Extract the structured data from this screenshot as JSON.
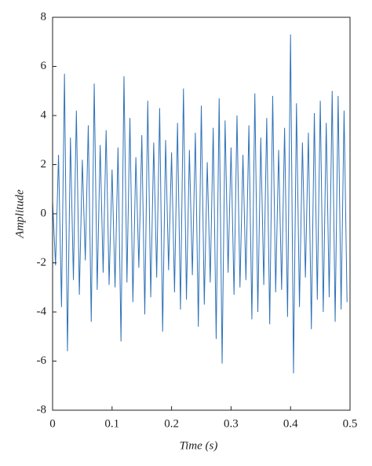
{
  "chart_data": {
    "type": "line",
    "xlabel": "Time (s)",
    "ylabel": "Amplitude",
    "x": [
      0,
      0.005,
      0.01,
      0.015,
      0.02,
      0.025,
      0.03,
      0.035,
      0.04,
      0.045,
      0.05,
      0.055,
      0.06,
      0.065,
      0.07,
      0.075,
      0.08,
      0.085,
      0.09,
      0.095,
      0.1,
      0.105,
      0.11,
      0.115,
      0.12,
      0.125,
      0.13,
      0.135,
      0.14,
      0.145,
      0.15,
      0.155,
      0.16,
      0.165,
      0.17,
      0.175,
      0.18,
      0.185,
      0.19,
      0.195,
      0.2,
      0.205,
      0.21,
      0.215,
      0.22,
      0.225,
      0.23,
      0.235,
      0.24,
      0.245,
      0.25,
      0.255,
      0.26,
      0.265,
      0.27,
      0.275,
      0.28,
      0.285,
      0.29,
      0.295,
      0.3,
      0.305,
      0.31,
      0.315,
      0.32,
      0.325,
      0.33,
      0.335,
      0.34,
      0.345,
      0.35,
      0.355,
      0.36,
      0.365,
      0.37,
      0.375,
      0.38,
      0.385,
      0.39,
      0.395,
      0.4,
      0.405,
      0.41,
      0.415,
      0.42,
      0.425,
      0.43,
      0.435,
      0.44,
      0.445,
      0.45,
      0.455,
      0.46,
      0.465,
      0.47,
      0.475,
      0.48,
      0.485,
      0.49,
      0.495
    ],
    "series": [
      {
        "color": "#2f72b8",
        "values": [
          0.5,
          -2.1,
          2.4,
          -3.8,
          5.7,
          -5.6,
          3.1,
          -2.7,
          4.2,
          -3.3,
          2.2,
          -1.9,
          3.6,
          -4.4,
          5.3,
          -3.1,
          2.8,
          -2.4,
          3.4,
          -2.9,
          1.8,
          -3.0,
          2.7,
          -5.2,
          5.6,
          -2.8,
          3.9,
          -3.6,
          2.3,
          -2.2,
          3.2,
          -4.1,
          4.6,
          -3.4,
          2.9,
          -2.6,
          4.3,
          -4.8,
          3.0,
          -2.3,
          2.5,
          -3.2,
          3.7,
          -3.9,
          5.1,
          -3.5,
          2.6,
          -2.5,
          3.3,
          -4.6,
          4.4,
          -3.7,
          2.1,
          -2.8,
          3.5,
          -5.1,
          4.7,
          -6.1,
          3.8,
          -2.4,
          2.7,
          -3.3,
          4.0,
          -3.0,
          2.4,
          -2.7,
          3.6,
          -4.3,
          4.9,
          -4.0,
          3.1,
          -2.9,
          3.9,
          -4.5,
          4.8,
          -3.2,
          2.6,
          -3.1,
          3.5,
          -4.2,
          7.3,
          -6.5,
          4.5,
          -3.8,
          2.9,
          -2.6,
          3.3,
          -4.7,
          4.1,
          -3.5,
          4.6,
          -4.0,
          3.7,
          -3.4,
          5.0,
          -4.4,
          4.8,
          -3.9,
          4.2,
          -3.6
        ]
      }
    ],
    "xlim": [
      0,
      0.5
    ],
    "xticks": [
      0,
      0.1,
      0.2,
      0.3,
      0.4,
      0.5
    ],
    "ylim": [
      -8,
      8
    ],
    "yticks": [
      -8,
      -6,
      -4,
      -2,
      0,
      2,
      4,
      6,
      8
    ]
  }
}
